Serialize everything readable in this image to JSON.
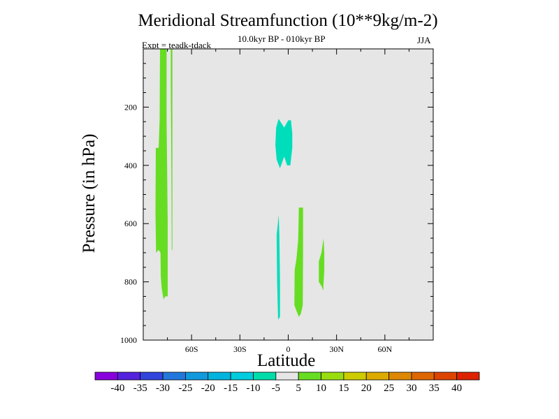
{
  "chart_data": {
    "type": "heatmap",
    "title": "Meridional Streamfunction (10**9kg/m-2)",
    "subtitle": "10.0kyr BP - 010kyr BP",
    "season": "JJA",
    "experiment": "Expt = teadk-tdack",
    "xlabel": "Latitude",
    "ylabel": "Pressure (in hPa)",
    "xlim": [
      -90,
      90
    ],
    "ylim": [
      1000,
      0
    ],
    "x_ticks": [
      {
        "value": -60,
        "label": "60S"
      },
      {
        "value": -30,
        "label": "30S"
      },
      {
        "value": 0,
        "label": "0"
      },
      {
        "value": 30,
        "label": "30N"
      },
      {
        "value": 60,
        "label": "60N"
      }
    ],
    "y_ticks": [
      {
        "value": 200,
        "label": "200"
      },
      {
        "value": 400,
        "label": "400"
      },
      {
        "value": 600,
        "label": "600"
      },
      {
        "value": 800,
        "label": "800"
      },
      {
        "value": 1000,
        "label": "1000"
      }
    ],
    "background_color": "#e6e6e6",
    "regions": [
      {
        "name": "positive-cell-70S",
        "color": "#66dd22",
        "points": [
          [
            -79.6,
            0
          ],
          [
            -75.5,
            0
          ],
          [
            -75.5,
            240
          ],
          [
            -74.8,
            600
          ],
          [
            -74.8,
            850
          ],
          [
            -76.3,
            850
          ],
          [
            -77.4,
            860
          ],
          [
            -78.6,
            820
          ],
          [
            -79.1,
            780
          ],
          [
            -79.3,
            700
          ],
          [
            -80.5,
            690
          ],
          [
            -82.0,
            700
          ],
          [
            -82.4,
            560
          ],
          [
            -82.2,
            340
          ],
          [
            -80.4,
            340
          ],
          [
            -79.8,
            240
          ]
        ]
      },
      {
        "name": "positive-strip-72S",
        "color": "#66dd22",
        "points": [
          [
            -72.9,
            0
          ],
          [
            -71.9,
            0
          ],
          [
            -71.9,
            690
          ],
          [
            -72.3,
            690
          ],
          [
            -72.5,
            420
          ],
          [
            -72.9,
            120
          ]
        ]
      },
      {
        "name": "negative-cell-upper-eq",
        "color": "#00ddbb",
        "points": [
          [
            -6.0,
            240
          ],
          [
            -2.5,
            270
          ],
          [
            0,
            245
          ],
          [
            1.7,
            245
          ],
          [
            2.5,
            290
          ],
          [
            2.5,
            340
          ],
          [
            1.3,
            400
          ],
          [
            -0.7,
            400
          ],
          [
            -2.5,
            370
          ],
          [
            -5.1,
            410
          ],
          [
            -7.2,
            380
          ],
          [
            -8.0,
            330
          ],
          [
            -7.5,
            270
          ]
        ]
      },
      {
        "name": "negative-cell-lower-eq",
        "color": "#00ddbb",
        "points": [
          [
            -5.9,
            570
          ],
          [
            -5.5,
            640
          ],
          [
            -5.1,
            800
          ],
          [
            -5.1,
            920
          ],
          [
            -6.3,
            930
          ],
          [
            -6.9,
            800
          ],
          [
            -7.2,
            640
          ]
        ]
      },
      {
        "name": "positive-cell-5N",
        "color": "#66dd22",
        "points": [
          [
            6.6,
            545
          ],
          [
            9.2,
            545
          ],
          [
            9.2,
            700
          ],
          [
            9.0,
            880
          ],
          [
            7.8,
            910
          ],
          [
            6.6,
            920
          ],
          [
            5.1,
            900
          ],
          [
            3.8,
            880
          ],
          [
            4.0,
            760
          ],
          [
            5.1,
            720
          ],
          [
            6.1,
            660
          ],
          [
            6.4,
            600
          ]
        ]
      },
      {
        "name": "positive-cell-22N",
        "color": "#66dd22",
        "points": [
          [
            21.9,
            650
          ],
          [
            22.4,
            700
          ],
          [
            22.4,
            760
          ],
          [
            21.7,
            830
          ],
          [
            20.7,
            815
          ],
          [
            19.0,
            800
          ],
          [
            19.0,
            730
          ],
          [
            20.6,
            700
          ]
        ]
      }
    ],
    "colorbar": {
      "levels": [
        "-40",
        "-35",
        "-30",
        "-25",
        "-20",
        "-15",
        "-10",
        "-5",
        "5",
        "10",
        "15",
        "20",
        "25",
        "30",
        "35",
        "40"
      ],
      "colors": [
        "#8800dd",
        "#5522dd",
        "#3344dd",
        "#2277dd",
        "#1199dd",
        "#00b4dd",
        "#00ccdd",
        "#00ddaa",
        "#e6e6e6",
        "#66dd22",
        "#99dd11",
        "#cccc00",
        "#ddaa00",
        "#dd8800",
        "#dd6600",
        "#dd4400",
        "#dd2200"
      ]
    }
  }
}
